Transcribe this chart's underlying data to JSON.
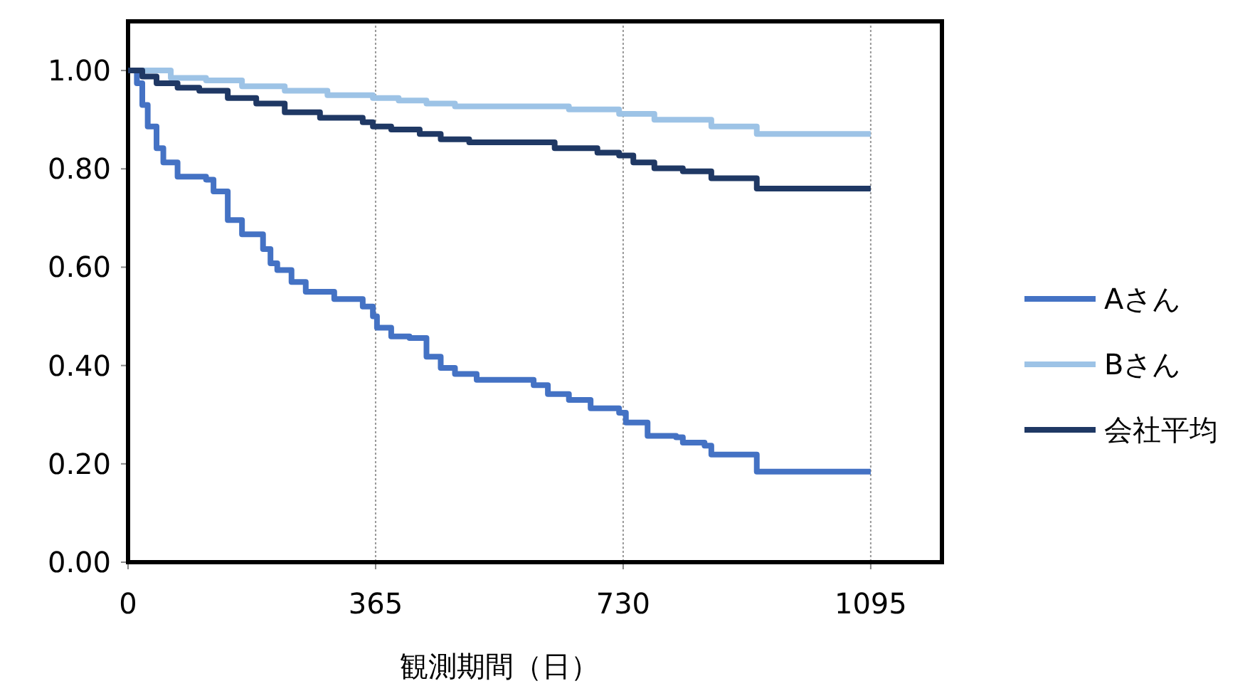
{
  "chart_data": {
    "type": "step",
    "xlabel": "観測期間（日）",
    "xlim": [
      0,
      1200
    ],
    "xticks": [
      0,
      365,
      730,
      1095
    ],
    "ylim": [
      0,
      1.1
    ],
    "yticks": [
      {
        "value": 0,
        "label": "0.00"
      },
      {
        "value": 0.2,
        "label": "0.20"
      },
      {
        "value": 0.4,
        "label": "0.40"
      },
      {
        "value": 0.6,
        "label": "0.60"
      },
      {
        "value": 0.8,
        "label": "0.80"
      },
      {
        "value": 1,
        "label": "1.00"
      }
    ],
    "grid": "x",
    "legend": "right",
    "line_style": "solid",
    "marker": "none",
    "series": [
      {
        "name": "Aさん",
        "color": "#4472c4",
        "x": [
          0,
          13,
          21,
          29,
          42,
          52,
          73,
          115,
          126,
          147,
          168,
          199,
          210,
          220,
          241,
          262,
          304,
          346,
          361,
          367,
          388,
          415,
          440,
          461,
          482,
          514,
          587,
          598,
          619,
          650,
          682,
          724,
          734,
          766,
          808,
          818,
          850,
          860,
          927,
          1095
        ],
        "values": [
          1.0,
          0.974,
          0.93,
          0.886,
          0.842,
          0.813,
          0.784,
          0.778,
          0.754,
          0.696,
          0.667,
          0.637,
          0.608,
          0.594,
          0.57,
          0.55,
          0.535,
          0.52,
          0.5,
          0.477,
          0.459,
          0.456,
          0.418,
          0.395,
          0.383,
          0.371,
          0.371,
          0.36,
          0.342,
          0.33,
          0.313,
          0.304,
          0.284,
          0.257,
          0.254,
          0.243,
          0.237,
          0.219,
          0.184,
          0.184
        ]
      },
      {
        "name": "Bさん",
        "color": "#9dc3e6",
        "x": [
          0,
          63,
          115,
          168,
          231,
          294,
          361,
          399,
          440,
          482,
          587,
          650,
          724,
          776,
          860,
          927,
          1095
        ],
        "values": [
          1.0,
          0.985,
          0.98,
          0.968,
          0.959,
          0.95,
          0.944,
          0.939,
          0.933,
          0.927,
          0.927,
          0.921,
          0.912,
          0.9,
          0.886,
          0.871,
          0.871
        ]
      },
      {
        "name": "会社平均",
        "color": "#1f3864",
        "x": [
          0,
          21,
          42,
          73,
          105,
          147,
          189,
          231,
          283,
          346,
          361,
          388,
          430,
          461,
          503,
          587,
          629,
          692,
          724,
          745,
          776,
          818,
          860,
          927,
          1095
        ],
        "values": [
          1.0,
          0.988,
          0.974,
          0.965,
          0.959,
          0.944,
          0.933,
          0.915,
          0.904,
          0.895,
          0.886,
          0.88,
          0.871,
          0.86,
          0.854,
          0.854,
          0.842,
          0.833,
          0.827,
          0.813,
          0.801,
          0.795,
          0.781,
          0.76,
          0.76
        ]
      }
    ]
  }
}
